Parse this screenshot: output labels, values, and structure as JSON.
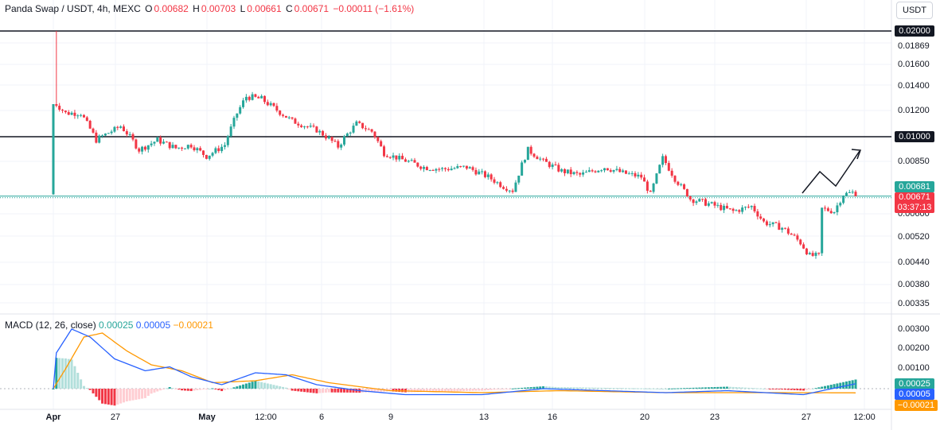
{
  "legend": {
    "title": "Panda Swap / USDT, 4h, MEXC",
    "o_key": "O",
    "o_val": "0.00682",
    "h_key": "H",
    "h_val": "0.00703",
    "l_key": "L",
    "l_val": "0.00661",
    "c_key": "C",
    "c_val": "0.00671",
    "change": "−0.00011 (−1.61%)"
  },
  "currency_button": "USDT",
  "price_axis": [
    "0.02000",
    "0.01869",
    "0.01600",
    "0.01400",
    "0.01200",
    "0.01000",
    "0.00850",
    "0.00681",
    "0.00671",
    "0.00600",
    "0.00520",
    "0.00440",
    "0.00380",
    "0.00335"
  ],
  "price_tags": {
    "line_high": "0.02000",
    "line_mid": "0.01000",
    "teal": "0.00681",
    "current": "0.00671",
    "countdown": "03:37:13"
  },
  "macd": {
    "label": "MACD (12, 26, close)",
    "v1": "0.00025",
    "v2": "0.00005",
    "v3": "−0.00021",
    "axis": [
      "0.00300",
      "0.00200",
      "0.00100"
    ],
    "tags": [
      "0.00025",
      "0.00005",
      "−0.00021"
    ]
  },
  "time_axis": [
    "Apr",
    "27",
    "May",
    "12:00",
    "6",
    "9",
    "13",
    "16",
    "20",
    "23",
    "27",
    "12:00"
  ],
  "colors": {
    "up": "#26a69a",
    "down": "#f23645",
    "macd_line": "#2962ff",
    "signal_line": "#ff9800",
    "hist_up_strong": "#26a69a",
    "hist_up_weak": "#b2dfdb",
    "hist_down_strong": "#f23645",
    "hist_down_weak": "#ffcdd2"
  },
  "chart_data": {
    "type": "candlestick",
    "title": "Panda Swap / USDT, 4h, MEXC",
    "horizontal_lines": [
      0.02,
      0.01
    ],
    "current_price": 0.00671,
    "waypoints": [
      [
        0,
        0.0068
      ],
      [
        1,
        0.0125
      ],
      [
        4,
        0.0118
      ],
      [
        9,
        0.0118
      ],
      [
        14,
        0.0098
      ],
      [
        22,
        0.0108
      ],
      [
        28,
        0.0092
      ],
      [
        34,
        0.0098
      ],
      [
        40,
        0.0093
      ],
      [
        45,
        0.0095
      ],
      [
        50,
        0.0088
      ],
      [
        56,
        0.0095
      ],
      [
        60,
        0.0118
      ],
      [
        63,
        0.0131
      ],
      [
        68,
        0.0129
      ],
      [
        72,
        0.0122
      ],
      [
        78,
        0.0112
      ],
      [
        86,
        0.0105
      ],
      [
        93,
        0.0094
      ],
      [
        99,
        0.011
      ],
      [
        104,
        0.0104
      ],
      [
        108,
        0.009
      ],
      [
        114,
        0.0086
      ],
      [
        121,
        0.0082
      ],
      [
        127,
        0.0081
      ],
      [
        135,
        0.0082
      ],
      [
        142,
        0.0077
      ],
      [
        147,
        0.0072
      ],
      [
        150,
        0.007
      ],
      [
        155,
        0.0092
      ],
      [
        160,
        0.0085
      ],
      [
        166,
        0.008
      ],
      [
        172,
        0.0078
      ],
      [
        180,
        0.0082
      ],
      [
        186,
        0.0079
      ],
      [
        192,
        0.0077
      ],
      [
        195,
        0.0068
      ],
      [
        199,
        0.0087
      ],
      [
        203,
        0.0076
      ],
      [
        208,
        0.0066
      ],
      [
        214,
        0.0064
      ],
      [
        222,
        0.0061
      ],
      [
        228,
        0.0063
      ],
      [
        232,
        0.0057
      ],
      [
        238,
        0.0055
      ],
      [
        244,
        0.005
      ],
      [
        247,
        0.0046
      ],
      [
        250,
        0.0046
      ],
      [
        251,
        0.0062
      ],
      [
        255,
        0.0061
      ],
      [
        258,
        0.0068
      ],
      [
        261,
        0.0069
      ],
      [
        262,
        0.00671
      ]
    ],
    "macd_line": [
      [
        0,
        0
      ],
      [
        1,
        0.0018
      ],
      [
        6,
        0.003
      ],
      [
        12,
        0.0026
      ],
      [
        20,
        0.0015
      ],
      [
        30,
        0.0009
      ],
      [
        38,
        0.0011
      ],
      [
        45,
        0.0006
      ],
      [
        55,
        0.0002
      ],
      [
        66,
        0.0008
      ],
      [
        76,
        0.0007
      ],
      [
        86,
        0.0002
      ],
      [
        100,
        -0.0001
      ],
      [
        115,
        -0.0003
      ],
      [
        140,
        -0.0003
      ],
      [
        160,
        0.0
      ],
      [
        180,
        -0.0001
      ],
      [
        200,
        -0.0002
      ],
      [
        220,
        -0.0001
      ],
      [
        245,
        -0.0003
      ],
      [
        262,
        0.00025
      ]
    ],
    "signal_line": [
      [
        0,
        0
      ],
      [
        4,
        0.001
      ],
      [
        10,
        0.0026
      ],
      [
        16,
        0.0028
      ],
      [
        24,
        0.0019
      ],
      [
        32,
        0.0012
      ],
      [
        42,
        0.0009
      ],
      [
        52,
        0.0003
      ],
      [
        66,
        0.0004
      ],
      [
        78,
        0.0007
      ],
      [
        90,
        0.0003
      ],
      [
        110,
        -0.0001
      ],
      [
        140,
        -0.0002
      ],
      [
        165,
        -0.0001
      ],
      [
        200,
        -0.0002
      ],
      [
        240,
        -0.0002
      ],
      [
        262,
        -0.00021
      ]
    ]
  }
}
